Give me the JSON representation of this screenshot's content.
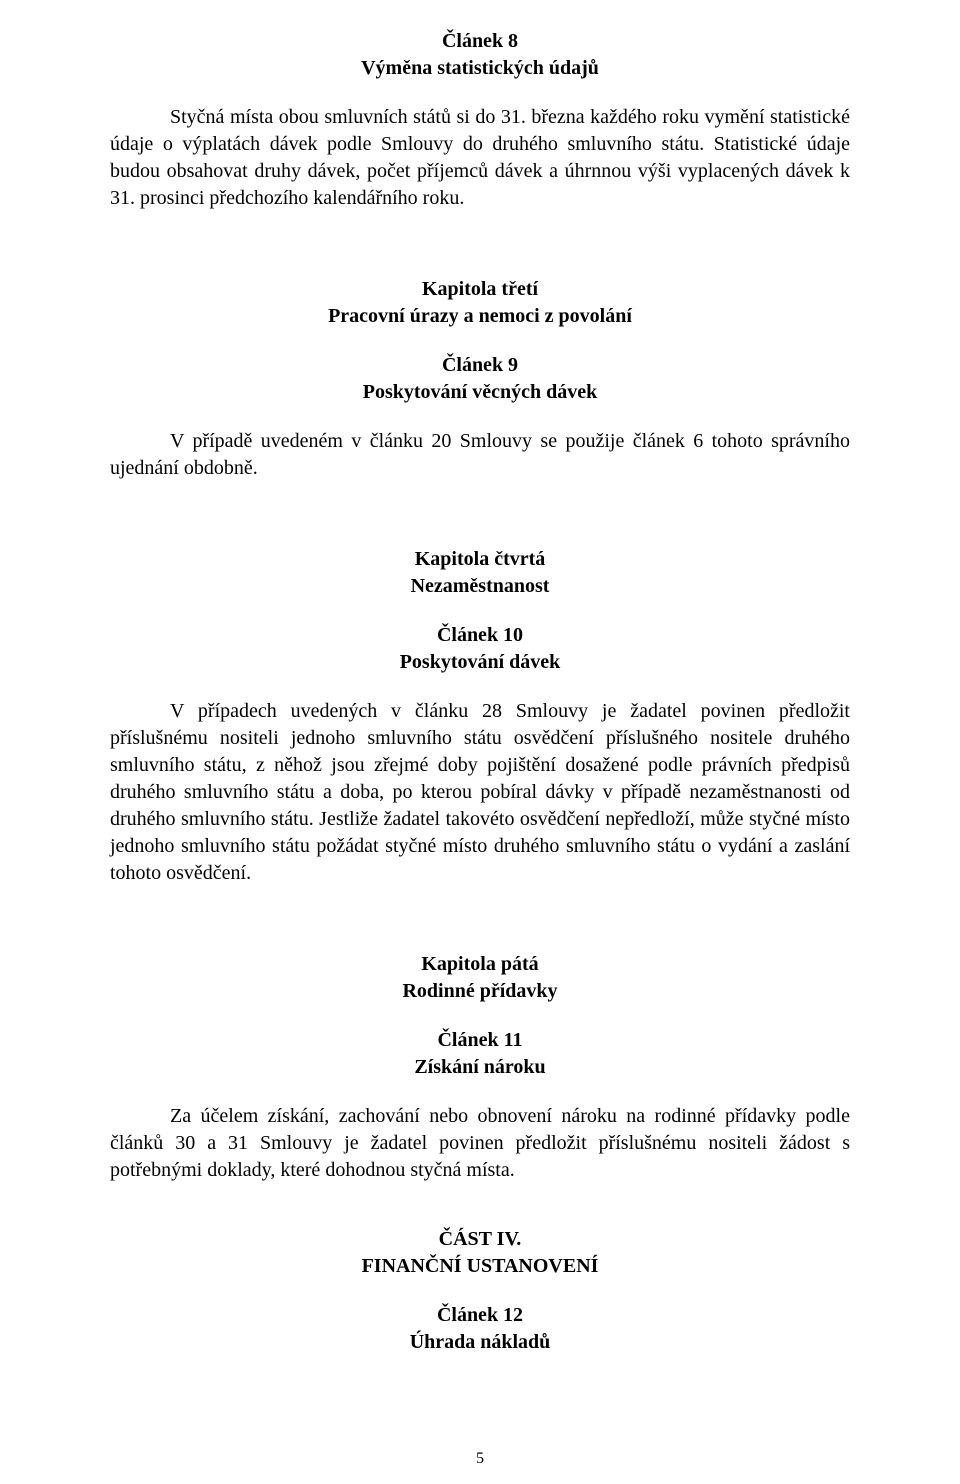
{
  "article8": {
    "title": "Článek  8",
    "subtitle": "Výměna statistických údajů",
    "paragraph": "Styčná místa obou smluvních států si do 31. března  každého roku vymění statistické údaje o výplatách dávek podle Smlouvy do druhého smluvního státu. Statistické údaje budou obsahovat druhy dávek, počet příjemců dávek a úhrnnou výši vyplacených dávek k 31. prosinci předchozího kalendářního roku."
  },
  "chapter3": {
    "title": "Kapitola třetí",
    "subtitle": "Pracovní úrazy a nemoci z povolání"
  },
  "article9": {
    "title": "Článek  9",
    "subtitle": "Poskytování věcných dávek",
    "paragraph": "V případě uvedeném v článku 20 Smlouvy se použije článek 6 tohoto správního ujednání obdobně."
  },
  "chapter4": {
    "title": "Kapitola čtvrtá",
    "subtitle": "Nezaměstnanost"
  },
  "article10": {
    "title": "Článek  10",
    "subtitle": "Poskytování dávek",
    "paragraph": "V případech uvedených v článku 28 Smlouvy je žadatel povinen předložit příslušnému nositeli jednoho smluvního státu osvědčení příslušného nositele druhého smluvního státu, z něhož jsou zřejmé doby pojištění dosažené podle právních předpisů druhého smluvního státu a doba, po kterou pobíral dávky v případě nezaměstnanosti od druhého smluvního státu. Jestliže žadatel takovéto osvědčení nepředloží, může styčné místo jednoho smluvního státu požádat styčné místo druhého smluvního státu o vydání a zaslání tohoto osvědčení."
  },
  "chapter5": {
    "title": "Kapitola pátá",
    "subtitle": "Rodinné přídavky"
  },
  "article11": {
    "title": "Článek 11",
    "subtitle": "Získání nároku",
    "paragraph": "Za účelem získání, zachování nebo obnovení nároku na rodinné přídavky podle článků 30 a 31 Smlouvy je žadatel povinen předložit příslušnému nositeli žádost s potřebnými doklady, které dohodnou styčná místa."
  },
  "part4": {
    "title": "ČÁST IV.",
    "subtitle": "FINANČNÍ  USTANOVENÍ"
  },
  "article12": {
    "title": "Článek  12",
    "subtitle": "Úhrada nákladů"
  },
  "pageNumber": "5"
}
